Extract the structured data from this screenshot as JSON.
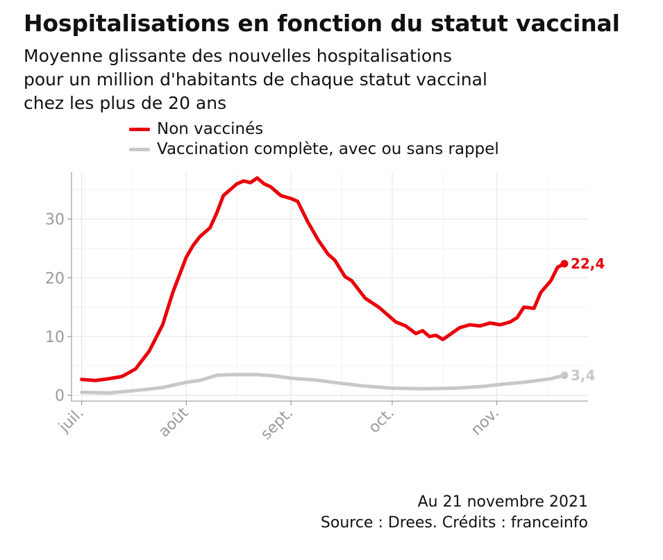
{
  "title": "Hospitalisations en fonction du statut vaccinal",
  "subtitle": [
    "Moyenne glissante des nouvelles hospitalisations",
    "pour un million d'habitants de chaque statut vaccinal",
    "chez les plus de 20 ans"
  ],
  "footer": {
    "date_note": "Au 21 novembre 2021",
    "source": "Source : Drees. Crédits : franceinfo"
  },
  "chart_data": {
    "type": "line",
    "x_unit": "date",
    "x_tick_labels": [
      "juil.",
      "août",
      "sept.",
      "oct.",
      "nov."
    ],
    "x_ticks": [
      "2021-07-01",
      "2021-08-01",
      "2021-09-01",
      "2021-10-01",
      "2021-11-01"
    ],
    "xlim": [
      "2021-06-28",
      "2021-11-28"
    ],
    "y_ticks": [
      0,
      10,
      20,
      30
    ],
    "ylim": [
      -1,
      38
    ],
    "grid": true,
    "legend_position": "top",
    "series": [
      {
        "name": "Non vaccinés",
        "color": "#e8000b",
        "end_label": "22,4",
        "points": [
          [
            "2021-07-01",
            2.7
          ],
          [
            "2021-07-05",
            2.5
          ],
          [
            "2021-07-09",
            2.8
          ],
          [
            "2021-07-13",
            3.2
          ],
          [
            "2021-07-17",
            4.5
          ],
          [
            "2021-07-21",
            7.5
          ],
          [
            "2021-07-25",
            12
          ],
          [
            "2021-07-28",
            17.5
          ],
          [
            "2021-07-29",
            19
          ],
          [
            "2021-08-01",
            23.5
          ],
          [
            "2021-08-03",
            25.5
          ],
          [
            "2021-08-05",
            27
          ],
          [
            "2021-08-08",
            28.5
          ],
          [
            "2021-08-10",
            31
          ],
          [
            "2021-08-12",
            34
          ],
          [
            "2021-08-14",
            35
          ],
          [
            "2021-08-16",
            36
          ],
          [
            "2021-08-18",
            36.5
          ],
          [
            "2021-08-20",
            36.2
          ],
          [
            "2021-08-22",
            37
          ],
          [
            "2021-08-24",
            36
          ],
          [
            "2021-08-26",
            35.5
          ],
          [
            "2021-08-29",
            34
          ],
          [
            "2021-09-01",
            33.5
          ],
          [
            "2021-09-03",
            33
          ],
          [
            "2021-09-06",
            29.5
          ],
          [
            "2021-09-09",
            26.5
          ],
          [
            "2021-09-12",
            24
          ],
          [
            "2021-09-14",
            23
          ],
          [
            "2021-09-17",
            20.2
          ],
          [
            "2021-09-19",
            19.5
          ],
          [
            "2021-09-23",
            16.5
          ],
          [
            "2021-09-27",
            15
          ],
          [
            "2021-09-30",
            13.5
          ],
          [
            "2021-10-02",
            12.5
          ],
          [
            "2021-10-05",
            11.8
          ],
          [
            "2021-10-08",
            10.5
          ],
          [
            "2021-10-10",
            11
          ],
          [
            "2021-10-12",
            10
          ],
          [
            "2021-10-14",
            10.2
          ],
          [
            "2021-10-16",
            9.5
          ],
          [
            "2021-10-18",
            10.3
          ],
          [
            "2021-10-21",
            11.5
          ],
          [
            "2021-10-24",
            12
          ],
          [
            "2021-10-27",
            11.8
          ],
          [
            "2021-10-30",
            12.3
          ],
          [
            "2021-11-02",
            12
          ],
          [
            "2021-11-05",
            12.5
          ],
          [
            "2021-11-07",
            13.2
          ],
          [
            "2021-11-09",
            15
          ],
          [
            "2021-11-12",
            14.8
          ],
          [
            "2021-11-14",
            17.5
          ],
          [
            "2021-11-17",
            19.5
          ],
          [
            "2021-11-19",
            21.8
          ],
          [
            "2021-11-21",
            22.4
          ]
        ]
      },
      {
        "name": "Vaccination complète, avec ou sans rappel",
        "color": "#c8c8c8",
        "end_label": "3,4",
        "points": [
          [
            "2021-07-01",
            0.5
          ],
          [
            "2021-07-09",
            0.4
          ],
          [
            "2021-07-17",
            0.8
          ],
          [
            "2021-07-25",
            1.3
          ],
          [
            "2021-08-01",
            2.2
          ],
          [
            "2021-08-05",
            2.5
          ],
          [
            "2021-08-10",
            3.4
          ],
          [
            "2021-08-14",
            3.5
          ],
          [
            "2021-08-22",
            3.5
          ],
          [
            "2021-08-27",
            3.3
          ],
          [
            "2021-09-01",
            2.9
          ],
          [
            "2021-09-08",
            2.6
          ],
          [
            "2021-09-15",
            2.1
          ],
          [
            "2021-09-22",
            1.6
          ],
          [
            "2021-10-01",
            1.2
          ],
          [
            "2021-10-10",
            1.1
          ],
          [
            "2021-10-20",
            1.2
          ],
          [
            "2021-10-28",
            1.5
          ],
          [
            "2021-11-03",
            1.9
          ],
          [
            "2021-11-09",
            2.2
          ],
          [
            "2021-11-13",
            2.5
          ],
          [
            "2021-11-17",
            2.8
          ],
          [
            "2021-11-21",
            3.4
          ]
        ]
      }
    ]
  }
}
